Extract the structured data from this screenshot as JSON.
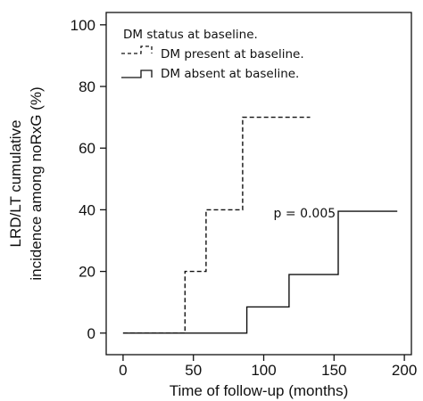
{
  "chart_data": {
    "type": "line",
    "step": true,
    "xlabel": "Time of follow-up (months)",
    "ylabel": [
      "LRD/LT cumulative",
      "incidence among noRxG (%)"
    ],
    "xlim": [
      -12,
      205
    ],
    "ylim": [
      -7,
      104
    ],
    "xticks": [
      0,
      50,
      100,
      150,
      200
    ],
    "yticks": [
      0,
      20,
      40,
      60,
      80,
      100
    ],
    "grid": false,
    "legend_position": "top-left",
    "legend_title": "DM status at baseline.",
    "series": [
      {
        "name": "DM present at baseline.",
        "line_style": "dashed",
        "color": "#111111",
        "x": [
          0,
          44,
          44,
          59,
          59,
          85,
          85,
          133
        ],
        "y": [
          0,
          0,
          20,
          20,
          40,
          40,
          70,
          70
        ]
      },
      {
        "name": "DM absent at baseline.",
        "line_style": "solid",
        "color": "#111111",
        "x": [
          0,
          88,
          88,
          118,
          118,
          153,
          153,
          195
        ],
        "y": [
          0,
          0,
          8.5,
          8.5,
          19,
          19,
          39.5,
          39.5
        ]
      }
    ],
    "annotations": [
      {
        "text": "p = 0.005",
        "x": 107,
        "y": 37.5
      }
    ]
  }
}
